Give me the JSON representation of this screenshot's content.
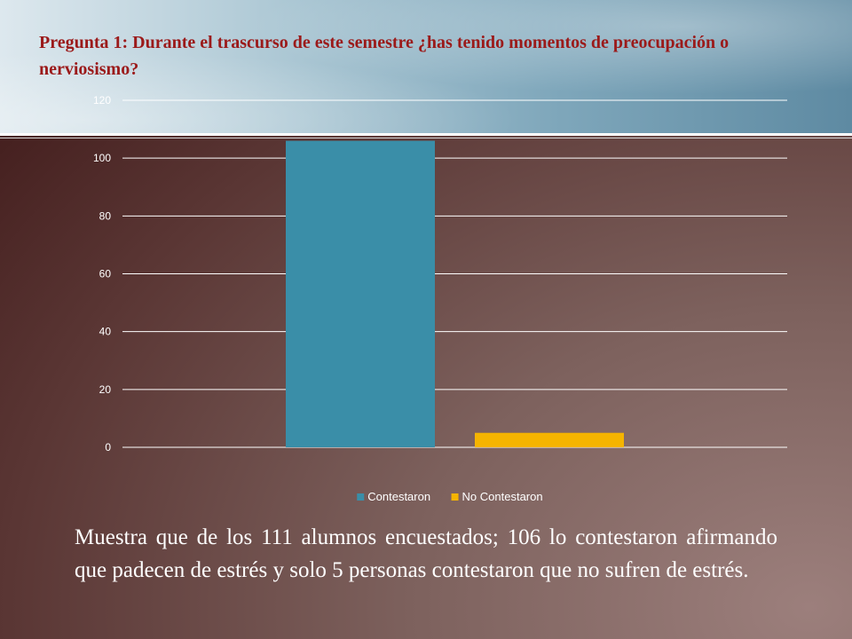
{
  "slide": {
    "title": "Pregunta 1: Durante el trascurso de este semestre ¿has tenido momentos de preocupación o nerviosismo?",
    "body": "Muestra que de los 111 alumnos encuestados; 106 lo contestaron afirmando que padecen de estrés y solo 5 personas contestaron que no sufren de estrés."
  },
  "colors": {
    "title": "#9b1a1a",
    "series_contestaron": "#3a8ea8",
    "series_no_contestaron": "#f5b400",
    "gridline": "#ffffff"
  },
  "chart_data": {
    "type": "bar",
    "title": "",
    "xlabel": "",
    "ylabel": "",
    "ylim": [
      0,
      120
    ],
    "yticks": [
      "0",
      "20",
      "40",
      "60",
      "80",
      "100",
      "120"
    ],
    "grid": true,
    "legend_position": "bottom",
    "series": [
      {
        "name": "Contestaron",
        "values": [
          106
        ]
      },
      {
        "name": "No Contestaron",
        "values": [
          5
        ]
      }
    ]
  }
}
